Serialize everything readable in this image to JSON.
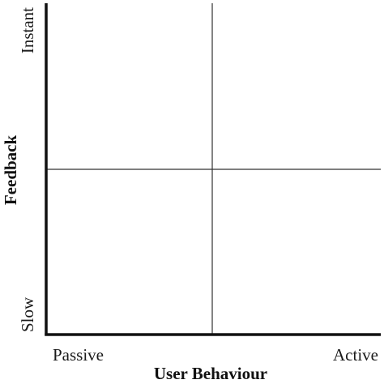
{
  "diagram": {
    "type": "quadrant-matrix",
    "x_axis": {
      "title": "User Behaviour",
      "min_label": "Passive",
      "max_label": "Active"
    },
    "y_axis": {
      "title": "Feedback",
      "min_label": "Slow",
      "max_label": "Instant"
    },
    "colors": {
      "axis": "#111111",
      "divider": "#333333",
      "text": "#1a1a1a"
    }
  }
}
